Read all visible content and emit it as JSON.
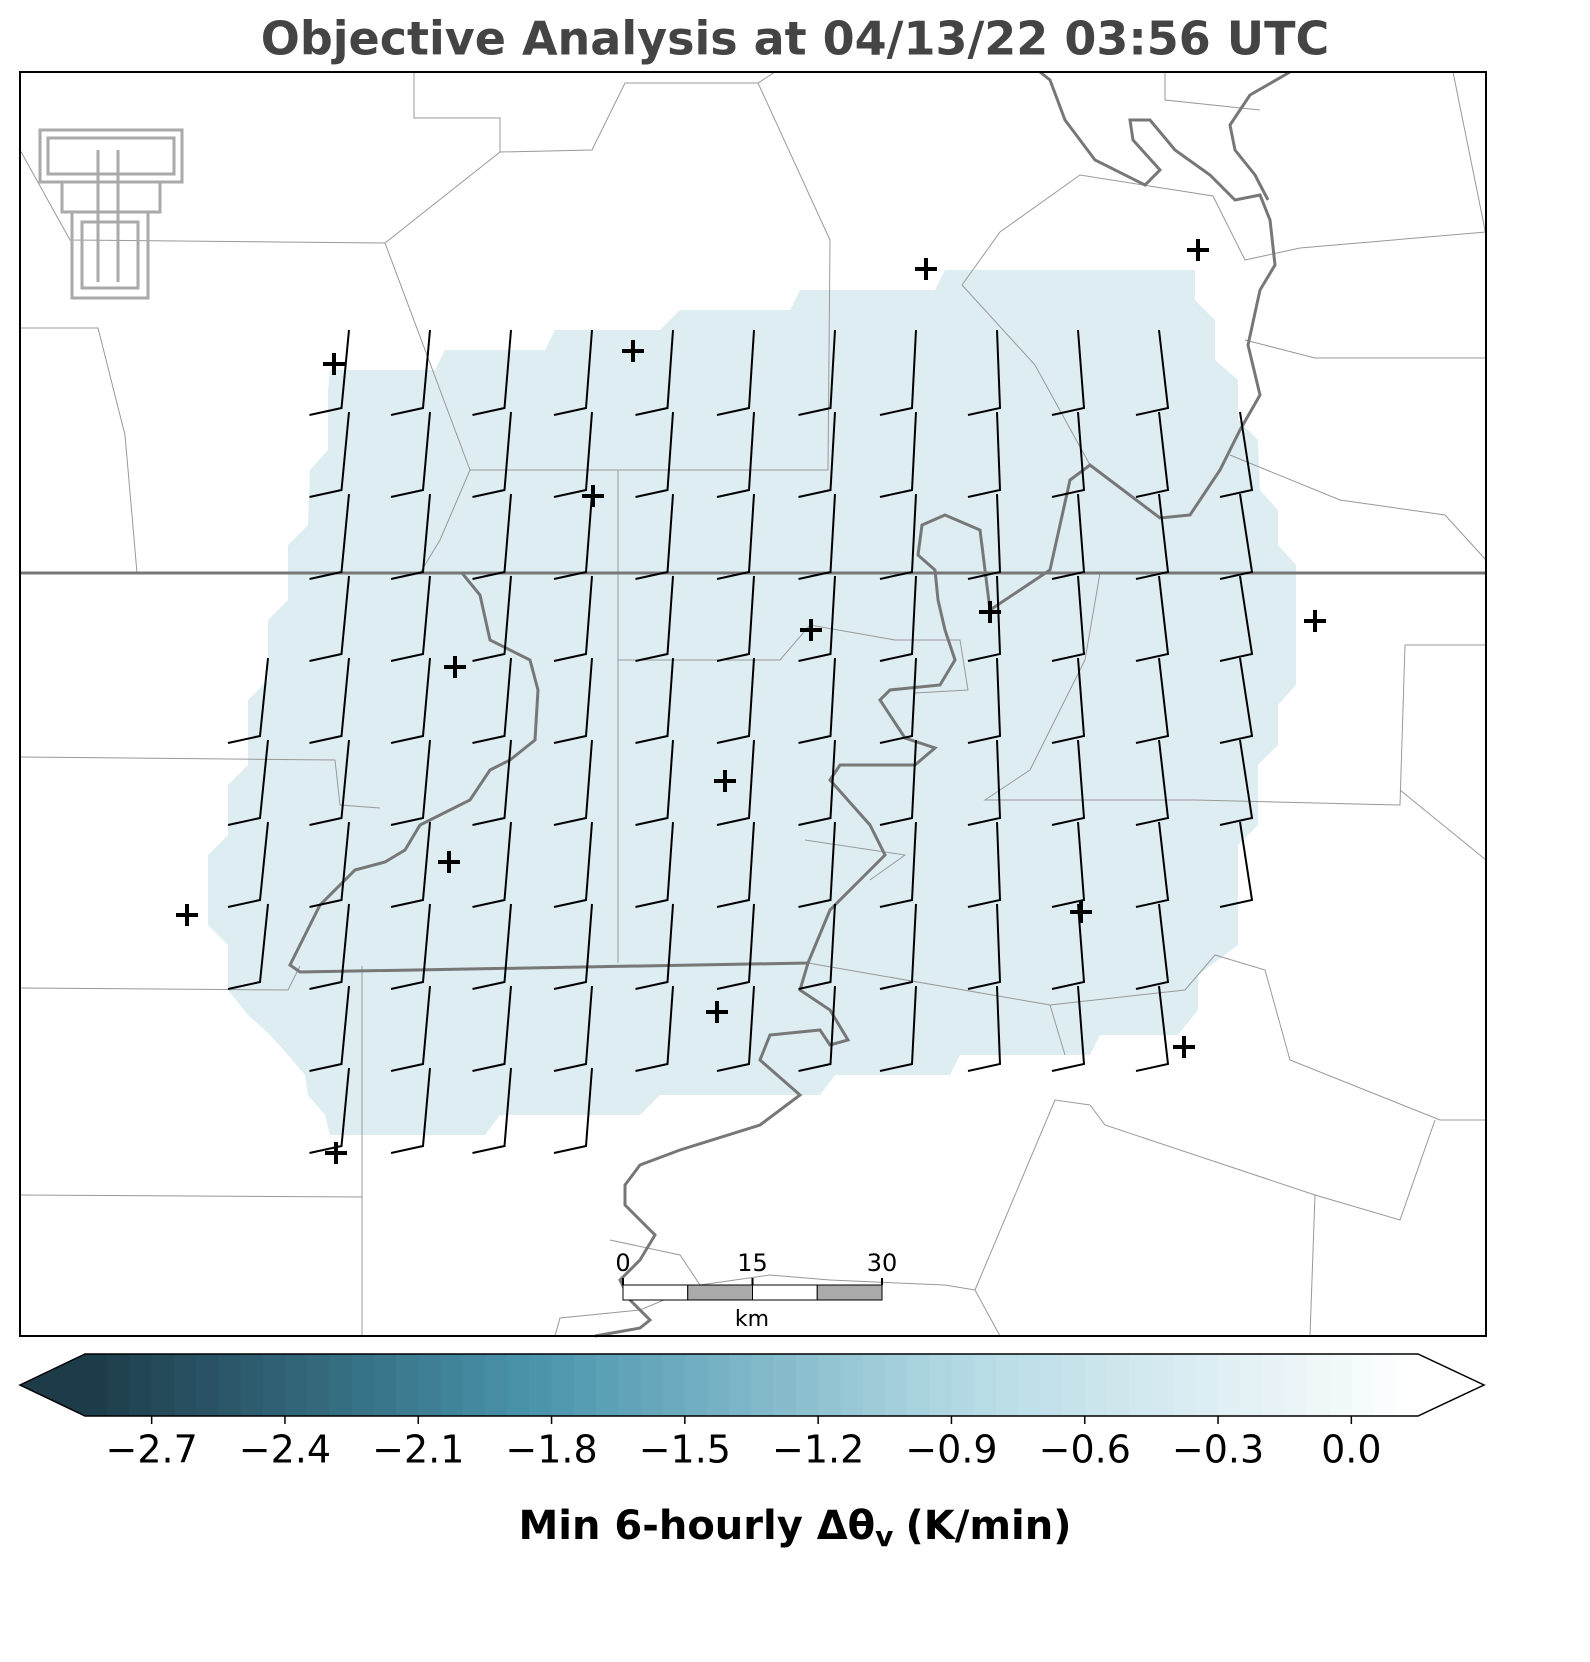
{
  "header": {
    "title": "Objective Analysis at 04/13/22 03:56 UTC"
  },
  "scale_bar": {
    "ticks": [
      0,
      15,
      30
    ],
    "lim": [
      0,
      30
    ],
    "unit": "km"
  },
  "colorbar": {
    "lim": [
      -2.85,
      0.15
    ],
    "ticks": [
      {
        "value": -2.7,
        "label": "−2.7"
      },
      {
        "value": -2.4,
        "label": "−2.4"
      },
      {
        "value": -2.1,
        "label": "−2.1"
      },
      {
        "value": -1.8,
        "label": "−1.8"
      },
      {
        "value": -1.5,
        "label": "−1.5"
      },
      {
        "value": -1.2,
        "label": "−1.2"
      },
      {
        "value": -0.9,
        "label": "−0.9"
      },
      {
        "value": -0.6,
        "label": "−0.6"
      },
      {
        "value": -0.3,
        "label": "−0.3"
      },
      {
        "value": 0,
        "label": "0.0"
      }
    ],
    "colors": [
      "#1d3b49",
      "#4893ab",
      "#b6dbe5",
      "#ffffff"
    ],
    "label": {
      "main": "Min 6-hourly Δθ",
      "sub": "v",
      "unit": "(K/min)"
    }
  }
}
